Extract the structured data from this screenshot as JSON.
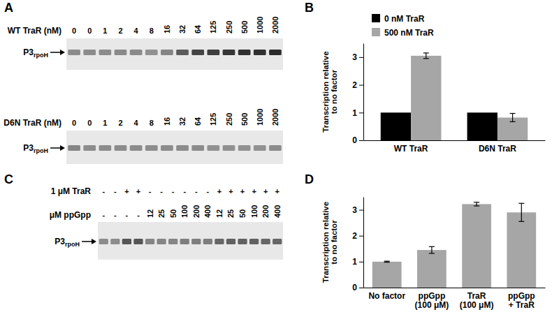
{
  "chart_data": [
    {
      "type": "gel",
      "panel_label": "A",
      "header": [
        {
          "label": "WT TraR (nM)",
          "entries": [
            "0",
            "0",
            "1",
            "2",
            "4",
            "8",
            "16",
            "32",
            "64",
            "125",
            "250",
            "500",
            "1000",
            "2000"
          ]
        }
      ],
      "band_label": "P3",
      "band_label_subscript": "rpoH",
      "band_intensity": [
        0.42,
        0.42,
        0.42,
        0.43,
        0.43,
        0.4,
        0.45,
        0.62,
        0.72,
        0.74,
        0.78,
        0.8,
        0.8,
        0.82
      ]
    },
    {
      "type": "gel",
      "header": [
        {
          "label": "D6N TraR (nM)",
          "entries": [
            "0",
            "0",
            "1",
            "2",
            "4",
            "8",
            "16",
            "32",
            "64",
            "125",
            "250",
            "500",
            "1000",
            "2000"
          ]
        }
      ],
      "band_label": "P3",
      "band_label_subscript": "rpoH",
      "band_intensity": [
        0.45,
        0.42,
        0.42,
        0.42,
        0.42,
        0.42,
        0.42,
        0.42,
        0.42,
        0.4,
        0.4,
        0.4,
        0.4,
        0.42
      ]
    },
    {
      "type": "bar",
      "panel_label": "B",
      "ylabel": "Transcription relative\nto no factor",
      "categories": [
        "WT TraR",
        "D6N TraR"
      ],
      "series": [
        {
          "name": "0 nM TraR",
          "color": "#000000",
          "values": [
            1,
            1
          ]
        },
        {
          "name": "500 nM TraR",
          "color": "#a6a6a6",
          "values": [
            3.05,
            0.82
          ],
          "errors": [
            0.1,
            0.15
          ]
        }
      ],
      "ylim": [
        0,
        3.5
      ],
      "yticks": [
        0,
        1,
        2,
        3
      ],
      "legend": "upper left"
    },
    {
      "type": "gel",
      "panel_label": "C",
      "header": [
        {
          "label": "1 μM TraR",
          "entries": [
            "-",
            "-",
            "+",
            "+",
            "-",
            "-",
            "-",
            "-",
            "-",
            "-",
            "+",
            "+",
            "+",
            "+",
            "+",
            "+"
          ]
        },
        {
          "label": "μM ppGpp",
          "entries": [
            "-",
            "-",
            "-",
            "-",
            "12",
            "25",
            "50",
            "100",
            "200",
            "400",
            "12",
            "25",
            "50",
            "100",
            "200",
            "400"
          ]
        }
      ],
      "band_label": "P3",
      "band_label_subscript": "rpoH",
      "band_intensity": [
        0.42,
        0.42,
        0.65,
        0.65,
        0.45,
        0.45,
        0.45,
        0.48,
        0.48,
        0.48,
        0.58,
        0.6,
        0.6,
        0.6,
        0.58,
        0.58
      ]
    },
    {
      "type": "bar",
      "panel_label": "D",
      "ylabel": "Transcription relative\nto no factor",
      "categories": [
        "No factor",
        "ppGpp\n(100 μM)",
        "TraR\n(100 μM)",
        "ppGpp\n+ TraR"
      ],
      "values": [
        1,
        1.45,
        3.22,
        2.9
      ],
      "errors": [
        0.02,
        0.13,
        0.07,
        0.35
      ],
      "color": "#a6a6a6",
      "ylim": [
        0,
        3.5
      ],
      "yticks": [
        0,
        1,
        2,
        3
      ]
    }
  ]
}
